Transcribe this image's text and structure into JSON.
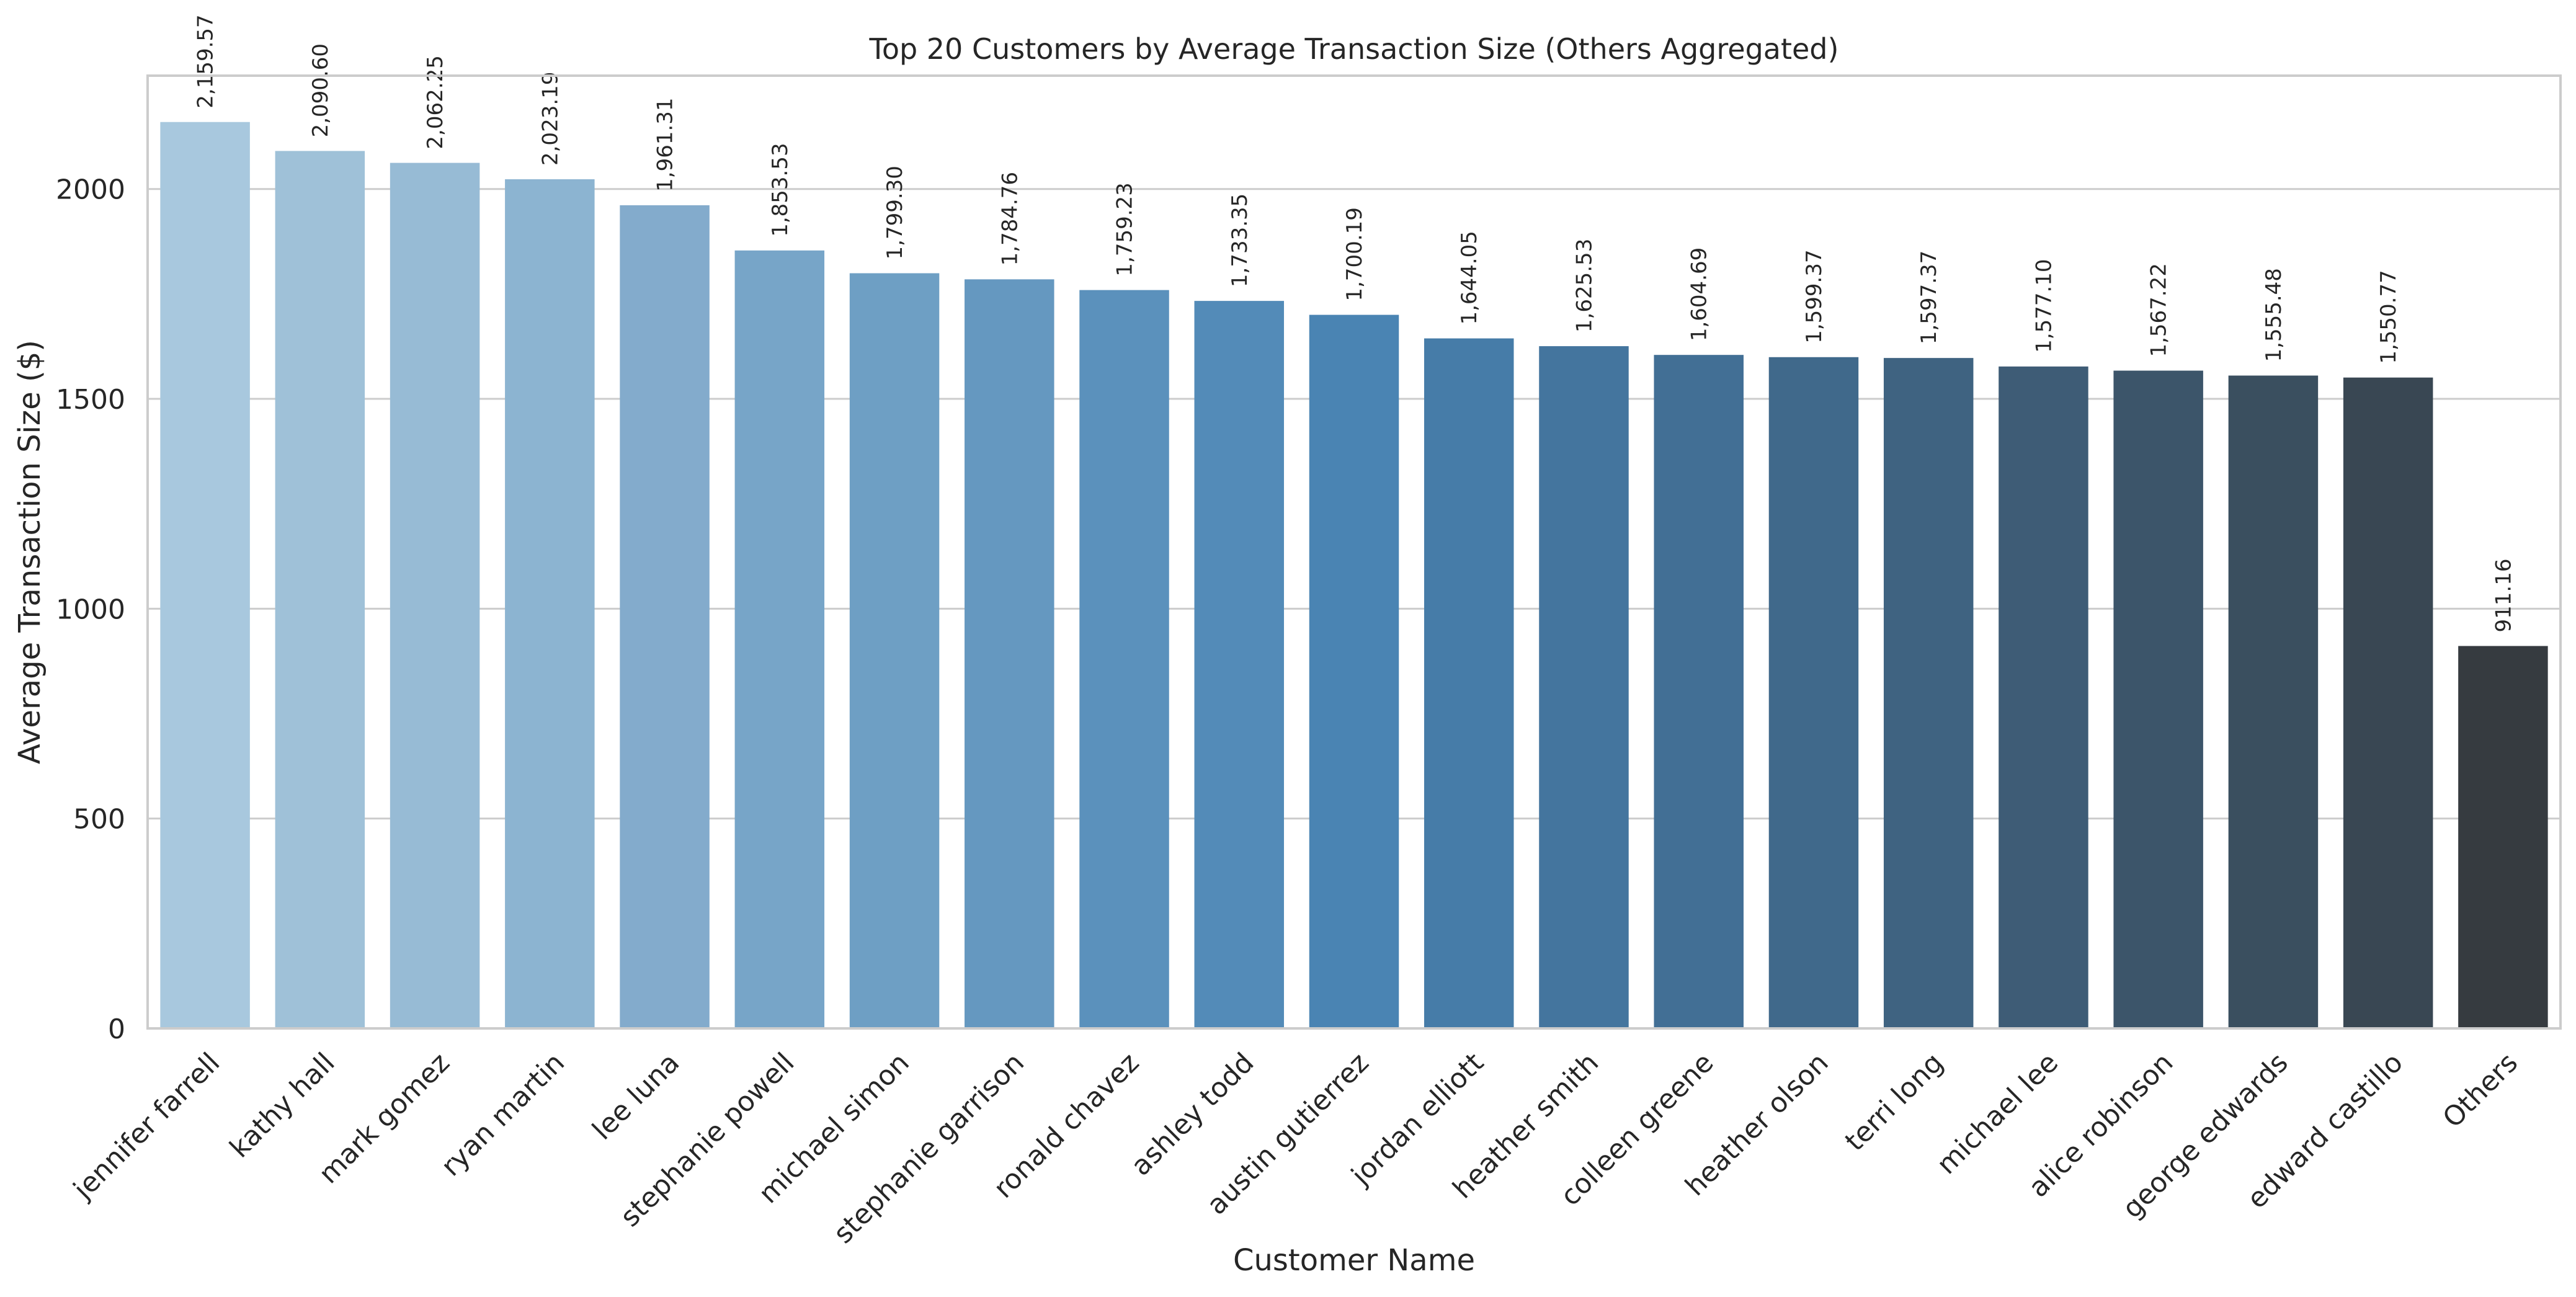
{
  "chart_data": {
    "type": "bar",
    "title": "Top 20 Customers by Average Transaction Size (Others Aggregated)",
    "xlabel": "Customer Name",
    "ylabel": "Average Transaction Size ($)",
    "ylim": [
      0,
      2270
    ],
    "yticks": [
      0,
      500,
      1000,
      1500,
      2000
    ],
    "grid": "horizontal",
    "legend": "none",
    "categories": [
      "jennifer farrell",
      "kathy hall",
      "mark gomez",
      "ryan martin",
      "lee luna",
      "stephanie powell",
      "michael simon",
      "stephanie garrison",
      "ronald chavez",
      "ashley todd",
      "austin gutierrez",
      "jordan elliott",
      "heather smith",
      "colleen greene",
      "heather olson",
      "terri long",
      "michael lee",
      "alice robinson",
      "george edwards",
      "edward castillo",
      "Others"
    ],
    "values": [
      2159.57,
      2090.6,
      2062.25,
      2023.19,
      1961.31,
      1853.53,
      1799.3,
      1784.76,
      1759.23,
      1733.35,
      1700.19,
      1644.05,
      1625.53,
      1604.69,
      1599.37,
      1597.37,
      1577.1,
      1567.22,
      1555.48,
      1550.77,
      911.16
    ],
    "data_labels": [
      "2,159.57",
      "2,090.60",
      "2,062.25",
      "2,023.19",
      "1,961.31",
      "1,853.53",
      "1,799.30",
      "1,784.76",
      "1,759.23",
      "1,733.35",
      "1,700.19",
      "1,644.05",
      "1,625.53",
      "1,604.69",
      "1,599.37",
      "1,597.37",
      "1,577.10",
      "1,567.22",
      "1,555.48",
      "1,550.77",
      "911.16"
    ],
    "colors": [
      "#a8c8de",
      "#9fc1d8",
      "#97bbd5",
      "#8cb4d1",
      "#83abcc",
      "#77a5c8",
      "#6e9fc4",
      "#6598c0",
      "#5b91bc",
      "#538bb8",
      "#4a84b3",
      "#467ca8",
      "#44759e",
      "#426f95",
      "#40698b",
      "#3f6381",
      "#3e5c76",
      "#3c556a",
      "#3a4f5f",
      "#394753",
      "#363b40"
    ]
  }
}
